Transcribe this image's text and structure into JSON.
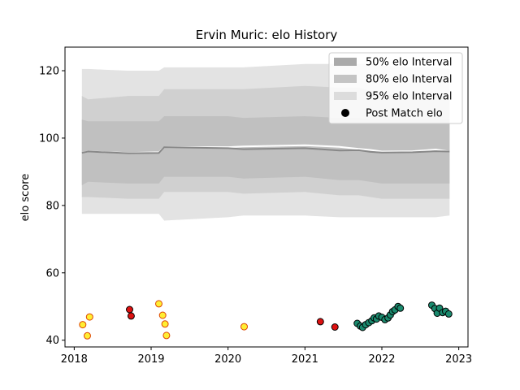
{
  "chart_data": {
    "type": "line",
    "title": "Ervin Muric: elo History",
    "xlabel": "",
    "ylabel": "elo score",
    "xlim": [
      2017.88,
      2023.12
    ],
    "ylim": [
      38,
      127
    ],
    "x_ticks": [
      2018,
      2019,
      2020,
      2021,
      2022,
      2023
    ],
    "x_tick_labels": [
      "2018",
      "2019",
      "2020",
      "2021",
      "2022",
      "2023"
    ],
    "y_ticks": [
      40,
      60,
      80,
      100,
      120
    ],
    "y_tick_labels": [
      "40",
      "60",
      "80",
      "100",
      "120"
    ],
    "grid": false,
    "legend_position": "top-right",
    "legend": [
      {
        "label": "50% elo Interval",
        "kind": "band",
        "color": "#aaaaaa"
      },
      {
        "label": "80% elo Interval",
        "kind": "band",
        "color": "#c4c4c4"
      },
      {
        "label": "95% elo Interval",
        "kind": "band",
        "color": "#dcdcdc"
      },
      {
        "label": "Post Match elo",
        "kind": "marker",
        "color": "#000000"
      }
    ],
    "colors": {
      "band95": "#e3e3e3",
      "band80": "#d0d0d0",
      "band50": "#c0c0c0",
      "mean_line": "#888888",
      "median_line": "#ffffff",
      "win": "#1a8a6e",
      "loss": "#dd1111",
      "other": "#ffee33",
      "other_edge": "#dd4400"
    },
    "band_x": [
      2018.1,
      2018.18,
      2018.7,
      2019.1,
      2019.17,
      2020.0,
      2020.2,
      2021.0,
      2021.45,
      2021.7,
      2021.85,
      2022.0,
      2022.4,
      2022.7,
      2022.88
    ],
    "mean": [
      95.6,
      96.0,
      95.5,
      95.6,
      97.3,
      97.0,
      96.7,
      97.0,
      96.3,
      96.4,
      95.9,
      95.7,
      95.8,
      96.1,
      96.0
    ],
    "median": [
      95.6,
      96.0,
      95.6,
      95.8,
      97.3,
      97.3,
      97.5,
      97.9,
      97.4,
      96.8,
      96.5,
      96.0,
      96.1,
      96.6,
      96.0
    ],
    "lo50": [
      86.0,
      87.0,
      86.5,
      86.5,
      88.5,
      88.5,
      88.0,
      88.5,
      87.5,
      87.5,
      87.0,
      86.5,
      86.5,
      86.5,
      86.5
    ],
    "hi50": [
      105.5,
      105.0,
      105.0,
      105.0,
      106.5,
      106.5,
      106.0,
      106.5,
      106.0,
      106.0,
      105.5,
      105.5,
      105.5,
      105.5,
      105.5
    ],
    "lo80": [
      82.5,
      82.5,
      82.0,
      82.0,
      84.0,
      84.0,
      83.5,
      84.0,
      83.0,
      83.0,
      82.5,
      82.0,
      82.0,
      82.0,
      82.0
    ],
    "hi80": [
      112.5,
      111.5,
      112.5,
      112.5,
      114.5,
      114.5,
      114.5,
      115.5,
      115.0,
      115.0,
      114.0,
      113.0,
      113.0,
      113.0,
      112.5
    ],
    "lo95": [
      77.5,
      77.5,
      77.5,
      77.5,
      75.5,
      76.5,
      77.0,
      77.0,
      76.5,
      76.5,
      76.5,
      76.5,
      76.5,
      76.5,
      77.0
    ],
    "hi95": [
      120.5,
      120.5,
      120.0,
      120.0,
      121.0,
      121.0,
      121.0,
      122.0,
      122.0,
      122.0,
      122.0,
      121.5,
      121.0,
      121.0,
      120.5
    ],
    "points": [
      {
        "x": 2018.11,
        "y": 44.6,
        "kind": "other"
      },
      {
        "x": 2018.17,
        "y": 41.3,
        "kind": "other"
      },
      {
        "x": 2018.2,
        "y": 46.9,
        "kind": "other"
      },
      {
        "x": 2018.72,
        "y": 49.1,
        "kind": "loss"
      },
      {
        "x": 2018.74,
        "y": 47.2,
        "kind": "loss"
      },
      {
        "x": 2019.1,
        "y": 50.8,
        "kind": "other"
      },
      {
        "x": 2019.15,
        "y": 47.4,
        "kind": "other"
      },
      {
        "x": 2019.18,
        "y": 44.8,
        "kind": "other"
      },
      {
        "x": 2019.2,
        "y": 41.4,
        "kind": "other"
      },
      {
        "x": 2020.21,
        "y": 44.0,
        "kind": "other"
      },
      {
        "x": 2021.2,
        "y": 45.5,
        "kind": "loss"
      },
      {
        "x": 2021.39,
        "y": 43.9,
        "kind": "loss"
      },
      {
        "x": 2021.68,
        "y": 45.0,
        "kind": "win"
      },
      {
        "x": 2021.72,
        "y": 44.2,
        "kind": "win"
      },
      {
        "x": 2021.75,
        "y": 43.8,
        "kind": "win"
      },
      {
        "x": 2021.79,
        "y": 44.6,
        "kind": "win"
      },
      {
        "x": 2021.83,
        "y": 45.2,
        "kind": "win"
      },
      {
        "x": 2021.87,
        "y": 45.8,
        "kind": "win"
      },
      {
        "x": 2021.9,
        "y": 46.6,
        "kind": "win"
      },
      {
        "x": 2021.93,
        "y": 46.3,
        "kind": "win"
      },
      {
        "x": 2021.96,
        "y": 47.2,
        "kind": "win"
      },
      {
        "x": 2022.0,
        "y": 46.8,
        "kind": "win"
      },
      {
        "x": 2022.04,
        "y": 46.1,
        "kind": "win"
      },
      {
        "x": 2022.08,
        "y": 46.6,
        "kind": "win"
      },
      {
        "x": 2022.11,
        "y": 47.5,
        "kind": "win"
      },
      {
        "x": 2022.14,
        "y": 48.5,
        "kind": "win"
      },
      {
        "x": 2022.17,
        "y": 49.0,
        "kind": "win"
      },
      {
        "x": 2022.21,
        "y": 50.0,
        "kind": "win"
      },
      {
        "x": 2022.24,
        "y": 49.5,
        "kind": "win"
      },
      {
        "x": 2022.65,
        "y": 50.4,
        "kind": "win"
      },
      {
        "x": 2022.69,
        "y": 49.4,
        "kind": "win"
      },
      {
        "x": 2022.72,
        "y": 48.0,
        "kind": "win"
      },
      {
        "x": 2022.75,
        "y": 49.5,
        "kind": "win"
      },
      {
        "x": 2022.79,
        "y": 48.2,
        "kind": "win"
      },
      {
        "x": 2022.83,
        "y": 48.6,
        "kind": "win"
      },
      {
        "x": 2022.87,
        "y": 47.8,
        "kind": "win"
      }
    ]
  }
}
